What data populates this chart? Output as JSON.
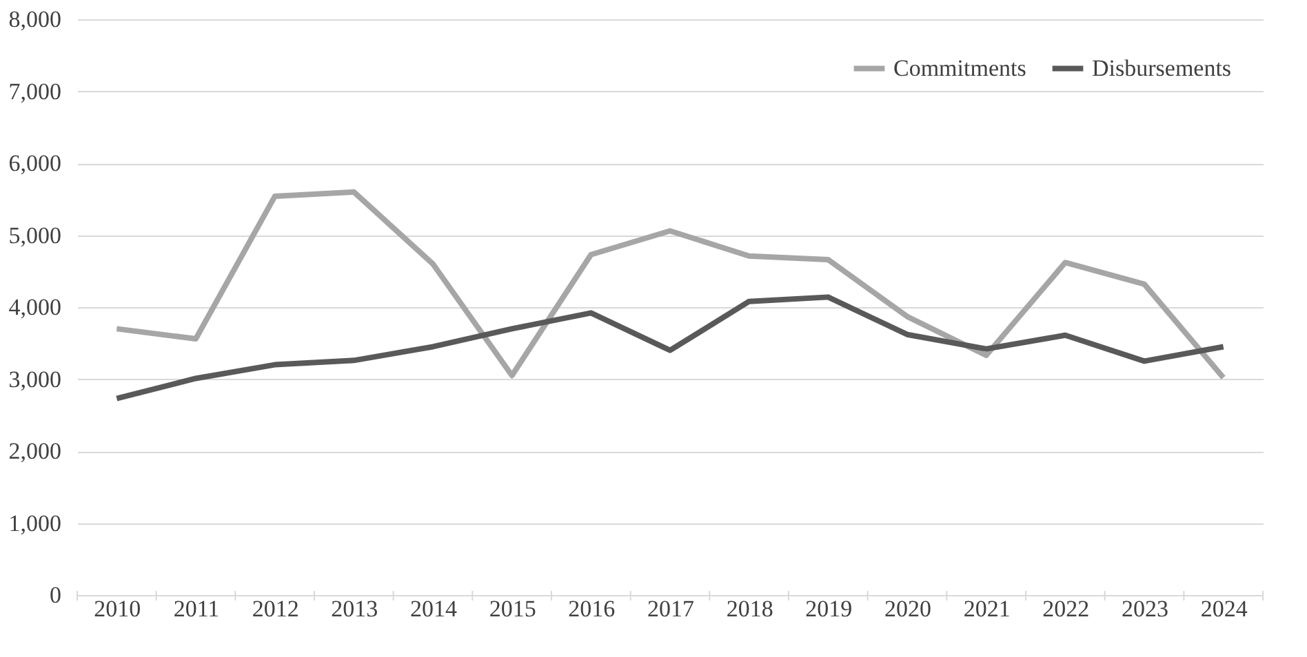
{
  "chart_data": {
    "type": "line",
    "categories": [
      "2010",
      "2011",
      "2012",
      "2013",
      "2014",
      "2015",
      "2016",
      "2017",
      "2018",
      "2019",
      "2020",
      "2021",
      "2022",
      "2023",
      "2024"
    ],
    "series": [
      {
        "name": "Commitments",
        "color": "#a6a6a6",
        "values": [
          3700,
          3560,
          5540,
          5600,
          4600,
          3050,
          4730,
          5060,
          4710,
          4660,
          3870,
          3330,
          4620,
          4320,
          3020
        ]
      },
      {
        "name": "Disbursements",
        "color": "#595959",
        "values": [
          2730,
          3010,
          3200,
          3260,
          3450,
          3700,
          3920,
          3400,
          4080,
          4140,
          3620,
          3420,
          3610,
          3250,
          3450
        ]
      }
    ],
    "ylim": [
      0,
      8000
    ],
    "yticks": [
      0,
      {
        "value": 1000,
        "label": "1,000"
      },
      {
        "value": 2000,
        "label": "2,000"
      },
      {
        "value": 3000,
        "label": "3,000"
      },
      {
        "value": 4000,
        "label": "4,000"
      },
      {
        "value": 5000,
        "label": "5,000"
      },
      {
        "value": 6000,
        "label": "6,000"
      },
      {
        "value": 7000,
        "label": "7,000"
      },
      {
        "value": 8000,
        "label": "8,000"
      }
    ],
    "grid": "y",
    "legend": "top right",
    "marker": "none",
    "line_style": "solid"
  }
}
